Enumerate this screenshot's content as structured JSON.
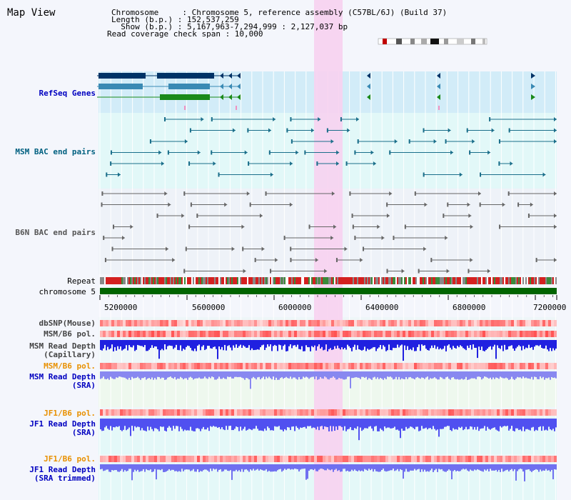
{
  "title": "Map View",
  "info": {
    "line1": "Chromosome     : Chromosome 5, reference assembly (C57BL/6J) (Build 37)",
    "line2": "Length (b.p.) : 152,537,259",
    "line3": "  Show (b.p.) : 5,167,963-7,294,999 : 2,127,037 bp",
    "line4": "Read coverage check span : 10,000"
  },
  "tracks": {
    "refseq": "RefSeq Genes",
    "msm_bac": "MSM BAC end pairs",
    "b6n_bac": "B6N BAC end pairs",
    "repeat": "Repeat",
    "chromosome": "chromosome 5",
    "dbsnp": "dbSNP(Mouse)",
    "msm_b6_pol1": "MSM/B6 pol.",
    "msm_depth_cap_1": "MSM Read Depth",
    "msm_depth_cap_2": "(Capillary)",
    "msm_b6_pol2": "MSM/B6 pol.",
    "msm_depth_sra_1": "MSM Read Depth",
    "msm_depth_sra_2": "(SRA)",
    "jf1_b6_pol1": "JF1/B6 pol.",
    "jf1_depth_sra_1": "JF1 Read Depth",
    "jf1_depth_sra_2": "(SRA)",
    "jf1_b6_pol2": "JF1/B6 pol.",
    "jf1_depth_trim_1": "JF1 Read Depth",
    "jf1_depth_trim_2": "(SRA trimmed)"
  },
  "axis": {
    "ticks": [
      "5200000",
      "5600000",
      "6000000",
      "6400000",
      "6800000",
      "7200000"
    ]
  },
  "colors": {
    "highlight": "#f7d2f0",
    "refseq_bg": "#d2ecf8",
    "msm_bg": "#e2f8f8",
    "b6n_bg": "#eef2f8",
    "chromosome": "#006400",
    "label_blue": "#0000c0",
    "label_orange": "#e89000",
    "label_teal": "#006080"
  }
}
